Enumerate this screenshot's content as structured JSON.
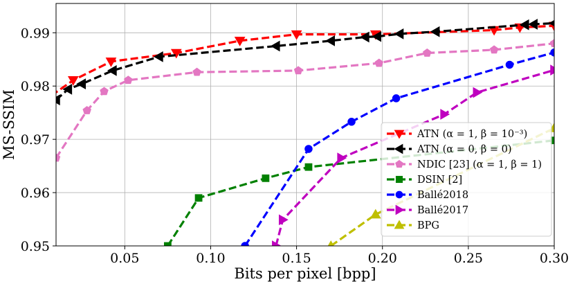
{
  "chart_data": {
    "type": "line",
    "title": "",
    "xlabel": "Bits per pixel [bpp]",
    "ylabel": "MS-SSIM",
    "xlim": [
      0.01,
      0.3
    ],
    "ylim": [
      0.95,
      0.9955
    ],
    "xticks": [
      0.05,
      0.1,
      0.15,
      0.2,
      0.25,
      0.3
    ],
    "xtick_labels": [
      "0.05",
      "0.10",
      "0.15",
      "0.20",
      "0.25",
      "0.30"
    ],
    "yticks": [
      0.95,
      0.96,
      0.97,
      0.98,
      0.99
    ],
    "ytick_labels": [
      "0.95",
      "0.96",
      "0.97",
      "0.98",
      "0.99"
    ],
    "grid": true,
    "legend_position": "lower-right",
    "series": [
      {
        "name": "ATN (α = 1, β = 10⁻³)",
        "color": "#ff0000",
        "marker": "triangle-down",
        "x": [
          0.002,
          0.02,
          0.042,
          0.08,
          0.117,
          0.15,
          0.196,
          0.265,
          0.28,
          0.3
        ],
        "y": [
          0.977,
          0.9811,
          0.9846,
          0.9862,
          0.9885,
          0.9897,
          0.9897,
          0.9905,
          0.991,
          0.9913
        ]
      },
      {
        "name": "ATN (α = 0, β = 0)",
        "color": "#000000",
        "marker": "triangle-left",
        "x": [
          0.01,
          0.017,
          0.025,
          0.043,
          0.07,
          0.138,
          0.17,
          0.19,
          0.197,
          0.21,
          0.231,
          0.283,
          0.288,
          0.3
        ],
        "y": [
          0.9774,
          0.9794,
          0.9804,
          0.9829,
          0.9855,
          0.9875,
          0.9885,
          0.9892,
          0.9893,
          0.9898,
          0.9902,
          0.9915,
          0.9916,
          0.9918
        ]
      },
      {
        "name": "NDIC [23] (α = 1, β = 1)",
        "color": "#e377c2",
        "marker": "pentagon",
        "x": [
          0.01,
          0.028,
          0.038,
          0.052,
          0.092,
          0.151,
          0.198,
          0.226,
          0.265,
          0.3
        ],
        "y": [
          0.9665,
          0.9754,
          0.979,
          0.9811,
          0.9826,
          0.9829,
          0.9843,
          0.9862,
          0.9868,
          0.988
        ]
      },
      {
        "name": "DSIN [2]",
        "color": "#008000",
        "marker": "square",
        "x": [
          0.075,
          0.093,
          0.132,
          0.157,
          0.3
        ],
        "y": [
          0.95,
          0.959,
          0.9627,
          0.9648,
          0.9698
        ]
      },
      {
        "name": "Ballé2018",
        "color": "#0000ff",
        "marker": "circle",
        "x": [
          0.12,
          0.157,
          0.182,
          0.208,
          0.274,
          0.3
        ],
        "y": [
          0.95,
          0.9682,
          0.9733,
          0.9777,
          0.984,
          0.9863
        ]
      },
      {
        "name": "Ballé2017",
        "color": "#bf00bf",
        "marker": "triangle-right",
        "x": [
          0.138,
          0.142,
          0.176,
          0.236,
          0.255,
          0.3
        ],
        "y": [
          0.95,
          0.9549,
          0.9665,
          0.9747,
          0.9788,
          0.983
        ]
      },
      {
        "name": "BPG",
        "color": "#bfbf00",
        "marker": "triangle-up",
        "x": [
          0.17,
          0.196,
          0.3
        ],
        "y": [
          0.95,
          0.9559,
          0.9721
        ]
      }
    ]
  }
}
